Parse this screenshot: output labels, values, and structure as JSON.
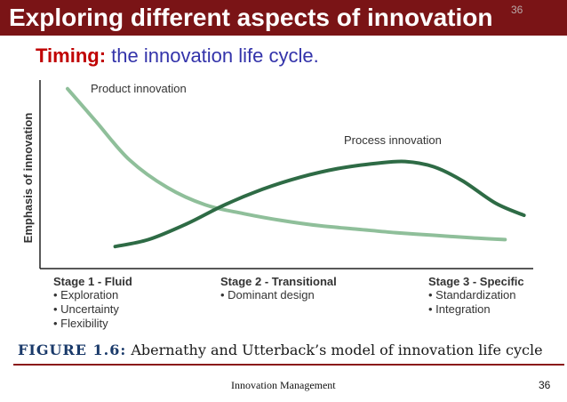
{
  "slide": {
    "title": "Exploring different aspects of innovation",
    "title_number": "36",
    "subtitle_keyword": "Timing:",
    "subtitle_rest": "the innovation life cycle.",
    "footer_center": "Innovation Management",
    "footer_page": "36",
    "colors": {
      "title_bar": "#7a1416",
      "subtitle_keyword": "#c00000",
      "subtitle_rest": "#3333aa"
    }
  },
  "chart_data": {
    "type": "line",
    "title": "",
    "xlabel": "",
    "ylabel": "Emphasis of innovation",
    "xlim": [
      0,
      10
    ],
    "ylim": [
      0,
      10
    ],
    "grid": false,
    "series": [
      {
        "name": "Product innovation",
        "color": "#8fbf9a",
        "x": [
          0.3,
          0.9,
          1.6,
          2.4,
          3.2,
          4.0,
          4.8,
          5.6,
          6.4,
          7.2,
          8.0,
          8.8,
          9.5
        ],
        "y": [
          9.5,
          7.6,
          5.4,
          3.8,
          2.8,
          2.3,
          1.9,
          1.6,
          1.4,
          1.2,
          1.05,
          0.9,
          0.8
        ]
      },
      {
        "name": "Process innovation",
        "color": "#2e6b45",
        "x": [
          1.3,
          2.0,
          2.8,
          3.6,
          4.4,
          5.2,
          6.0,
          6.8,
          7.4,
          8.0,
          8.6,
          9.3,
          9.9
        ],
        "y": [
          0.4,
          0.8,
          1.7,
          2.8,
          3.7,
          4.4,
          4.9,
          5.2,
          5.3,
          5.0,
          4.2,
          2.9,
          2.2
        ]
      }
    ],
    "stages": [
      {
        "title": "Stage 1 - Fluid",
        "items": [
          "• Exploration",
          "• Uncertainty",
          "• Flexibility"
        ]
      },
      {
        "title": "Stage 2 - Transitional",
        "items": [
          "• Dominant design"
        ]
      },
      {
        "title": "Stage 3 - Specific",
        "items": [
          "• Standardization",
          "• Integration"
        ]
      }
    ],
    "figure_label": "FIGURE 1.6:",
    "figure_caption": "Abernathy and Utterback’s model of innovation life cycle"
  }
}
